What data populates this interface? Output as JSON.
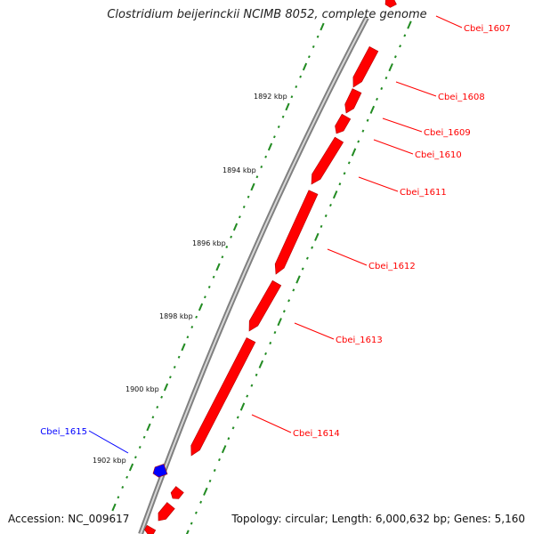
{
  "title": "Clostridium beijerinckii NCIMB 8052, complete genome",
  "accession": "Accession: NC_009617",
  "topology": "Topology: circular; Length: 6,000,632 bp; Genes: 5,160",
  "colors": {
    "forward": "#ff0000",
    "reverse": "#0000ff",
    "ticks": "#228b22",
    "backbone": "#808080"
  },
  "kbp_labels": [
    "1892 kbp",
    "1894 kbp",
    "1896 kbp",
    "1898 kbp",
    "1900 kbp",
    "1902 kbp"
  ],
  "genes": [
    {
      "id": "Cbei_1607",
      "strand": "+"
    },
    {
      "id": "Cbei_1608",
      "strand": "+"
    },
    {
      "id": "Cbei_1609",
      "strand": "+"
    },
    {
      "id": "Cbei_1610",
      "strand": "+"
    },
    {
      "id": "Cbei_1611",
      "strand": "+"
    },
    {
      "id": "Cbei_1612",
      "strand": "+"
    },
    {
      "id": "Cbei_1613",
      "strand": "+"
    },
    {
      "id": "Cbei_1614",
      "strand": "+"
    },
    {
      "id": "Cbei_1615",
      "strand": "-"
    }
  ]
}
